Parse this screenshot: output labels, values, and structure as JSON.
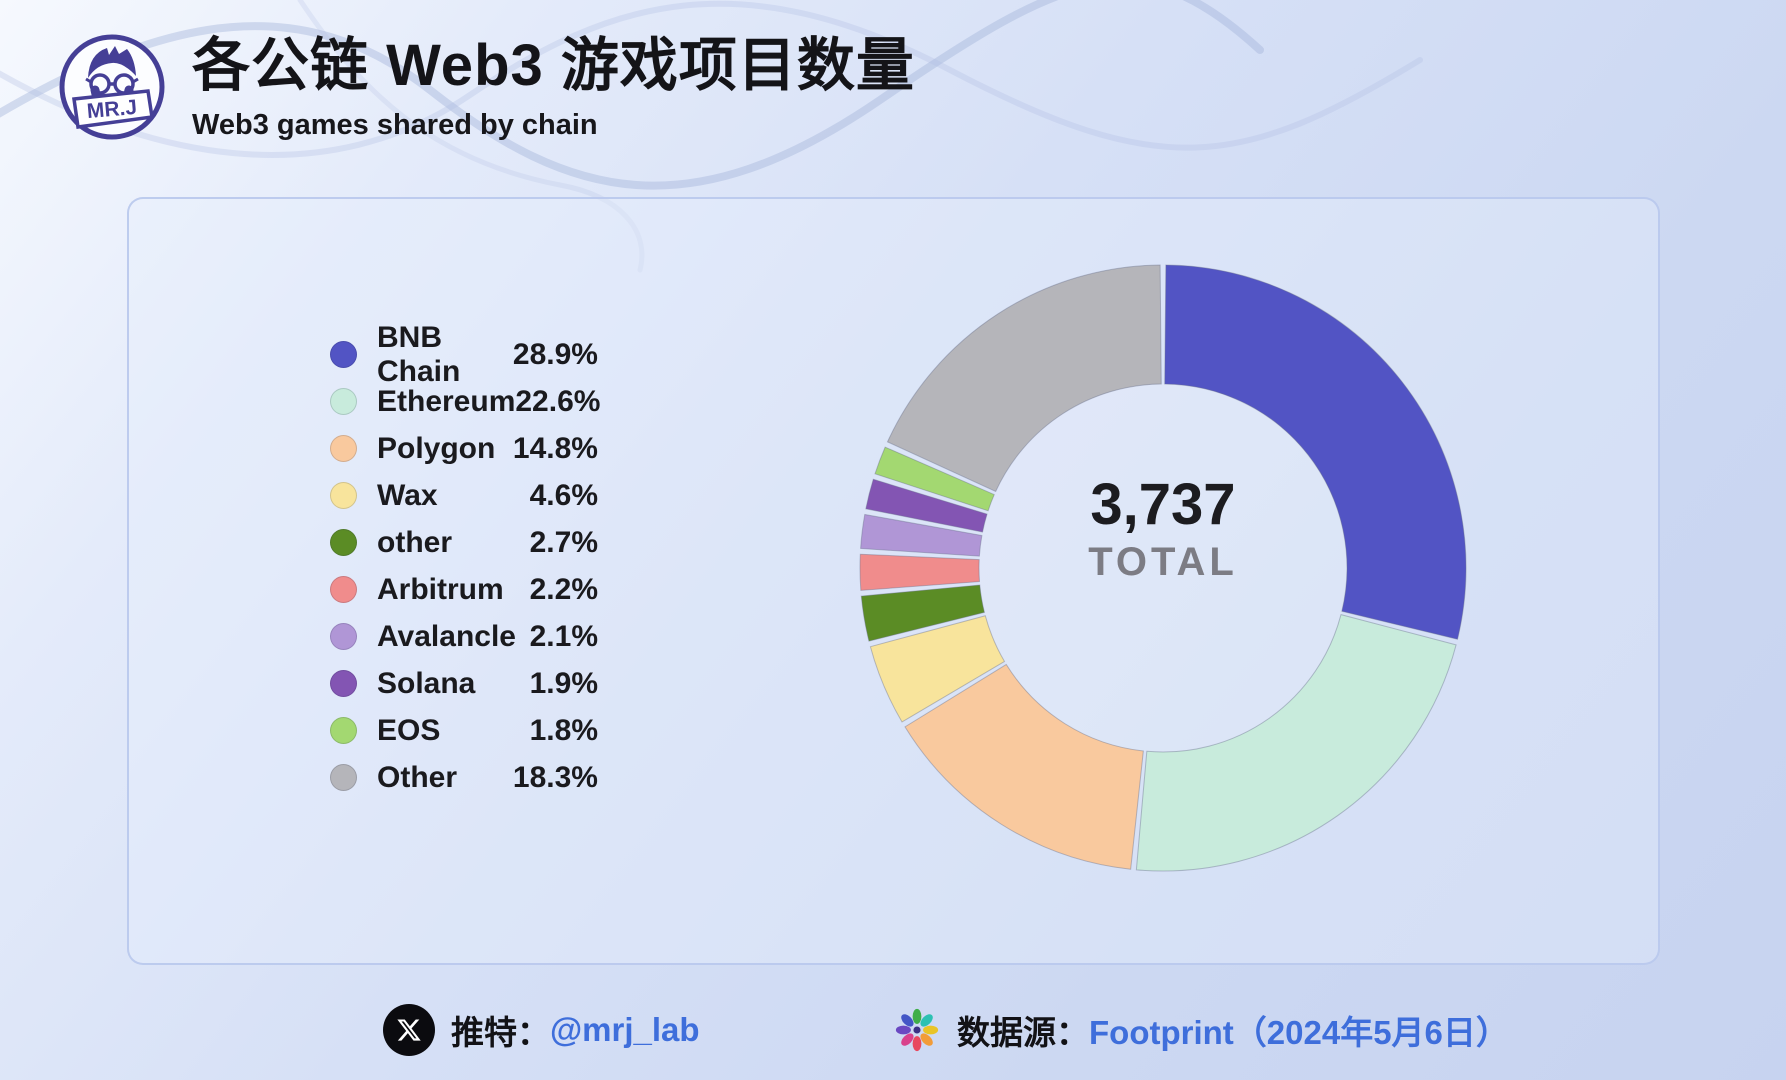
{
  "header": {
    "logo_text": "MR.J",
    "title": "各公链 Web3 游戏项目数量",
    "subtitle": "Web3 games shared by chain"
  },
  "chart_data": {
    "type": "pie",
    "donut": true,
    "title": "各公链 Web3 游戏项目数量",
    "total_value": "3,737",
    "total_label": "TOTAL",
    "unit": "%",
    "legend_position": "left",
    "series": [
      {
        "name": "BNB Chain",
        "value": 28.9,
        "color": "#5254c4"
      },
      {
        "name": "Ethereum",
        "value": 22.6,
        "color": "#c8ebdc"
      },
      {
        "name": "Polygon",
        "value": 14.8,
        "color": "#f9c99e"
      },
      {
        "name": "Wax",
        "value": 4.6,
        "color": "#f8e49c"
      },
      {
        "name": "other",
        "value": 2.7,
        "color": "#5b8c25"
      },
      {
        "name": "Arbitrum",
        "value": 2.2,
        "color": "#f08c8c"
      },
      {
        "name": "Avalancle",
        "value": 2.1,
        "color": "#b096d6"
      },
      {
        "name": "Solana",
        "value": 1.9,
        "color": "#8355b3"
      },
      {
        "name": "EOS",
        "value": 1.8,
        "color": "#a3d871"
      },
      {
        "name": "Other",
        "value": 18.3,
        "color": "#b5b5ba"
      }
    ]
  },
  "footer": {
    "twitter_label": "推特：",
    "twitter_handle": "@mrj_lab",
    "source_label": "数据源：",
    "source_value": "Footprint（2024年5月6日）"
  },
  "colors": {
    "link_blue": "#3e6edb",
    "total_gray": "#7c7c84",
    "logo_indigo": "#453f96",
    "card_border": "#b8c6ec"
  }
}
